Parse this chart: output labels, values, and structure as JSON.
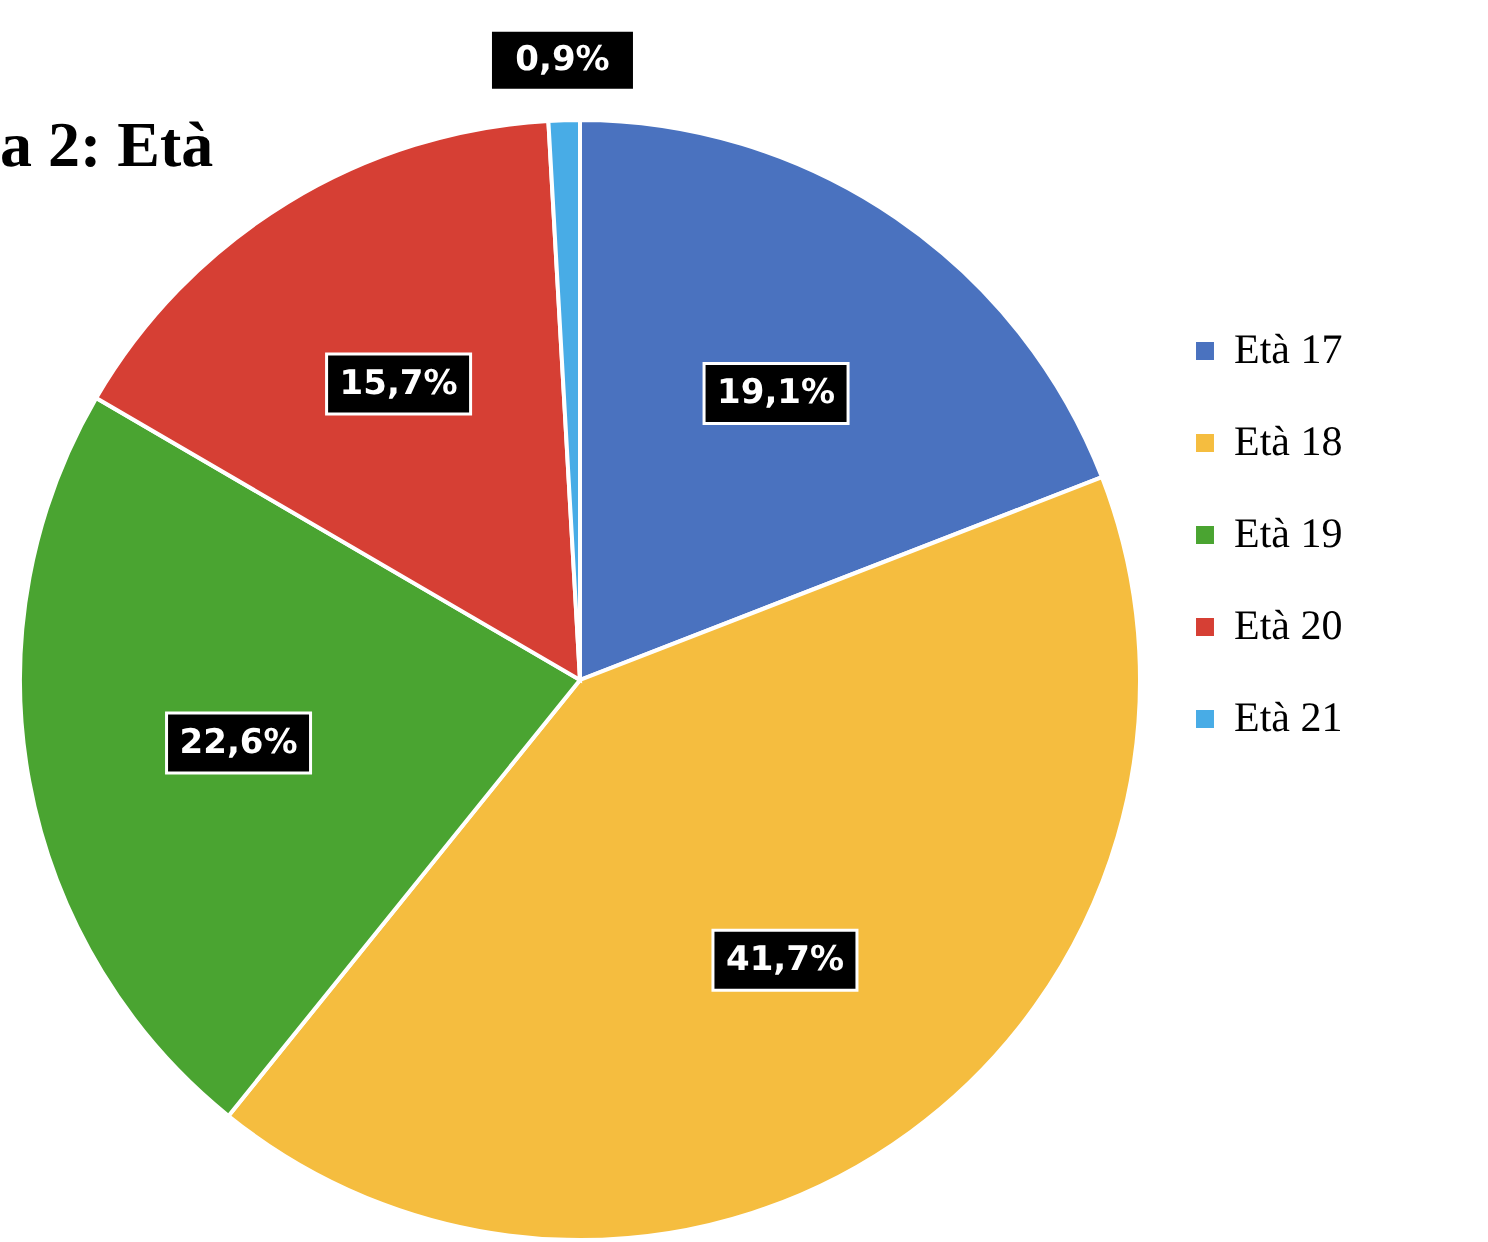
{
  "chart_data": {
    "type": "pie",
    "title": "a 2: Età",
    "categories": [
      "Età 17",
      "Età 18",
      "Età 19",
      "Età 20",
      "Età 21"
    ],
    "values": [
      19.1,
      41.7,
      22.6,
      15.7,
      0.9
    ],
    "value_labels": [
      "19,1%",
      "41,7%",
      "22,6%",
      "15,7%",
      "0,9%"
    ],
    "colors": [
      "#4a72bf",
      "#f5bd3f",
      "#4aa431",
      "#d63f34",
      "#48ace6"
    ],
    "legend": "right"
  }
}
